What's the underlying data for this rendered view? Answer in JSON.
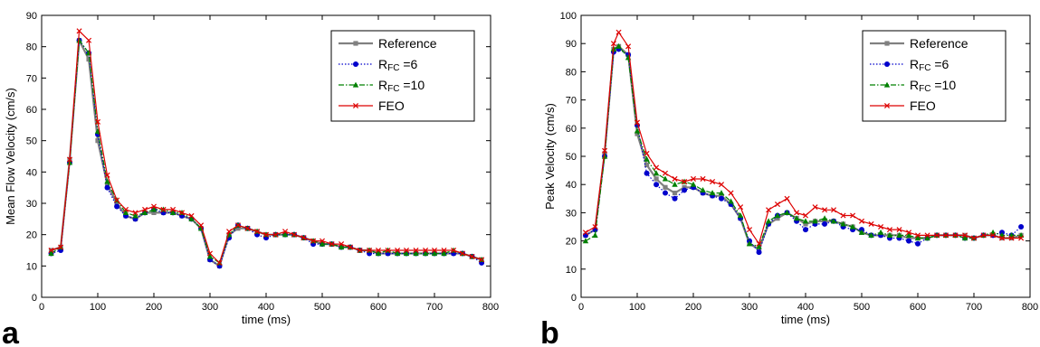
{
  "panels": [
    {
      "letter": "a"
    },
    {
      "letter": "b"
    }
  ],
  "chart_data": [
    {
      "type": "line",
      "xlabel": "time (ms)",
      "ylabel": "Mean Flow Velocity (cm/s)",
      "xlim": [
        0,
        800
      ],
      "ylim": [
        0,
        90
      ],
      "xticks": [
        0,
        100,
        200,
        300,
        400,
        500,
        600,
        700,
        800
      ],
      "yticks": [
        0,
        10,
        20,
        30,
        40,
        50,
        60,
        70,
        80,
        90
      ],
      "legend": {
        "position": "top-right"
      },
      "grid": false,
      "x": [
        17,
        34,
        50,
        67,
        84,
        100,
        117,
        134,
        150,
        167,
        184,
        200,
        217,
        234,
        250,
        267,
        284,
        300,
        317,
        334,
        350,
        367,
        384,
        400,
        417,
        434,
        450,
        467,
        484,
        500,
        517,
        534,
        550,
        567,
        584,
        600,
        617,
        634,
        650,
        667,
        684,
        700,
        717,
        734,
        750,
        767,
        784
      ],
      "series": [
        {
          "name": "Reference",
          "color": "#808080",
          "marker": "square",
          "dash": "solid",
          "values": [
            15,
            16,
            44,
            82,
            76,
            50,
            36,
            30,
            26,
            25,
            27,
            27,
            27,
            27,
            26,
            25,
            22,
            12,
            10,
            20,
            22,
            22,
            21,
            20,
            20,
            20,
            20,
            19,
            18,
            17,
            17,
            16,
            16,
            15,
            15,
            14,
            14,
            14,
            14,
            14,
            14,
            14,
            14,
            14,
            14,
            13,
            12
          ]
        },
        {
          "name": "R",
          "sub": "FC",
          "suffix": " =6",
          "color": "#0000cc",
          "marker": "circle",
          "dash": "dotted",
          "values": [
            14,
            15,
            43,
            82,
            78,
            52,
            35,
            29,
            26,
            25,
            27,
            28,
            27,
            27,
            26,
            25,
            22,
            12,
            10,
            19,
            23,
            22,
            20,
            19,
            20,
            20,
            20,
            19,
            17,
            17,
            17,
            16,
            16,
            15,
            14,
            14,
            14,
            14,
            14,
            14,
            14,
            14,
            14,
            14,
            14,
            13,
            11
          ]
        },
        {
          "name": "R",
          "sub": "FC",
          "suffix": " =10",
          "color": "#008000",
          "marker": "triangle",
          "dash": "dashdot",
          "values": [
            14,
            16,
            43,
            82,
            78,
            53,
            37,
            31,
            27,
            26,
            27,
            28,
            28,
            27,
            27,
            25,
            22,
            13,
            11,
            20,
            23,
            22,
            21,
            20,
            20,
            20,
            20,
            19,
            18,
            17,
            17,
            16,
            16,
            15,
            15,
            14,
            15,
            14,
            14,
            14,
            14,
            14,
            14,
            15,
            14,
            13,
            12
          ]
        },
        {
          "name": "FEO",
          "color": "#dd0000",
          "marker": "x",
          "dash": "solid",
          "values": [
            15,
            16,
            44,
            85,
            82,
            56,
            39,
            31,
            28,
            27,
            28,
            29,
            28,
            28,
            27,
            26,
            23,
            14,
            11,
            21,
            23,
            22,
            21,
            20,
            20,
            21,
            20,
            19,
            18,
            18,
            17,
            17,
            16,
            15,
            15,
            15,
            15,
            15,
            15,
            15,
            15,
            15,
            15,
            15,
            14,
            13,
            12
          ]
        }
      ]
    },
    {
      "type": "line",
      "xlabel": "time (ms)",
      "ylabel": "Peak Velocity (cm/s)",
      "xlim": [
        0,
        800
      ],
      "ylim": [
        0,
        100
      ],
      "xticks": [
        0,
        100,
        200,
        300,
        400,
        500,
        600,
        700,
        800
      ],
      "yticks": [
        0,
        10,
        20,
        30,
        40,
        50,
        60,
        70,
        80,
        90,
        100
      ],
      "legend": {
        "position": "top-right"
      },
      "grid": false,
      "x": [
        8,
        25,
        42,
        58,
        67,
        84,
        100,
        117,
        134,
        150,
        167,
        184,
        200,
        217,
        234,
        250,
        267,
        284,
        300,
        317,
        334,
        350,
        367,
        384,
        400,
        417,
        434,
        450,
        467,
        484,
        500,
        517,
        534,
        550,
        567,
        584,
        600,
        617,
        634,
        650,
        667,
        684,
        700,
        717,
        734,
        750,
        767,
        784
      ],
      "series": [
        {
          "name": "Reference",
          "color": "#808080",
          "marker": "square",
          "dash": "solid",
          "values": [
            22,
            24,
            51,
            88,
            89,
            86,
            58,
            47,
            42,
            39,
            37,
            39,
            39,
            37,
            36,
            36,
            33,
            28,
            19,
            17,
            26,
            28,
            30,
            28,
            26,
            27,
            27,
            27,
            26,
            25,
            23,
            22,
            22,
            22,
            22,
            21,
            21,
            21,
            22,
            22,
            22,
            22,
            21,
            22,
            22,
            21,
            21,
            22
          ]
        },
        {
          "name": "R",
          "sub": "FC",
          "suffix": " =6",
          "color": "#0000cc",
          "marker": "circle",
          "dash": "dotted",
          "values": [
            22,
            24,
            50,
            87,
            88,
            86,
            61,
            44,
            40,
            37,
            35,
            38,
            39,
            37,
            36,
            35,
            33,
            28,
            20,
            16,
            26,
            29,
            30,
            27,
            24,
            26,
            26,
            27,
            25,
            24,
            24,
            22,
            22,
            21,
            21,
            20,
            19,
            21,
            22,
            22,
            22,
            21,
            21,
            22,
            22,
            23,
            22,
            25
          ]
        },
        {
          "name": "R",
          "sub": "FC",
          "suffix": " =10",
          "color": "#008000",
          "marker": "triangle",
          "dash": "dashdot",
          "values": [
            20,
            22,
            50,
            88,
            89,
            85,
            59,
            49,
            44,
            42,
            40,
            41,
            40,
            38,
            37,
            37,
            34,
            29,
            19,
            18,
            27,
            29,
            30,
            28,
            27,
            27,
            28,
            27,
            26,
            25,
            23,
            22,
            23,
            22,
            22,
            22,
            21,
            21,
            22,
            22,
            22,
            21,
            21,
            22,
            23,
            22,
            22,
            22
          ]
        },
        {
          "name": "FEO",
          "color": "#dd0000",
          "marker": "x",
          "dash": "solid",
          "values": [
            23,
            25,
            52,
            90,
            94,
            89,
            62,
            51,
            46,
            44,
            42,
            41,
            42,
            42,
            41,
            40,
            37,
            32,
            24,
            19,
            31,
            33,
            35,
            30,
            29,
            32,
            31,
            31,
            29,
            29,
            27,
            26,
            25,
            24,
            24,
            23,
            22,
            22,
            22,
            22,
            22,
            22,
            21,
            22,
            22,
            21,
            21,
            21
          ]
        }
      ]
    }
  ]
}
